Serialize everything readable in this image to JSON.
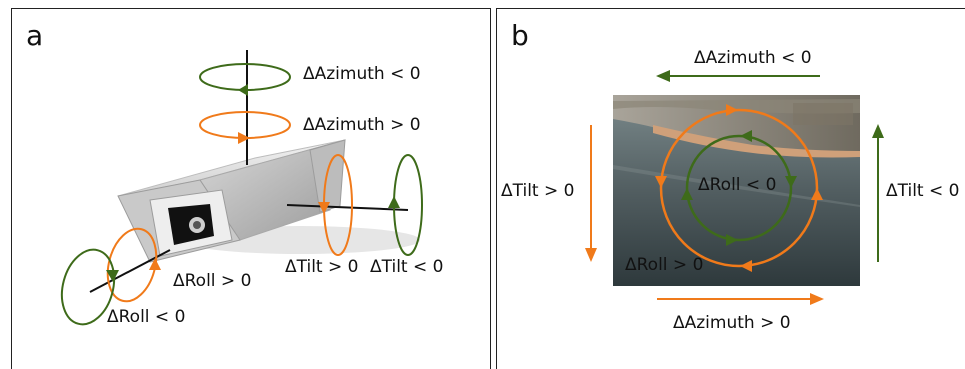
{
  "colors": {
    "green": "#3e6b1a",
    "orange": "#f07a1a",
    "line": "#111111"
  },
  "panel_a": {
    "letter": "a",
    "labels": {
      "azimuth_neg": "ΔAzimuth < 0",
      "azimuth_pos": "ΔAzimuth > 0",
      "roll_pos": "ΔRoll > 0",
      "roll_neg": "ΔRoll < 0",
      "tilt_pos": "ΔTilt > 0",
      "tilt_neg": "ΔTilt < 0"
    }
  },
  "panel_b": {
    "letter": "b",
    "labels": {
      "azimuth_neg": "ΔAzimuth < 0",
      "azimuth_pos": "ΔAzimuth > 0",
      "tilt_pos": "ΔTilt > 0",
      "tilt_neg": "ΔTilt < 0",
      "roll_neg": "ΔRoll < 0",
      "roll_pos": "ΔRoll > 0"
    }
  }
}
